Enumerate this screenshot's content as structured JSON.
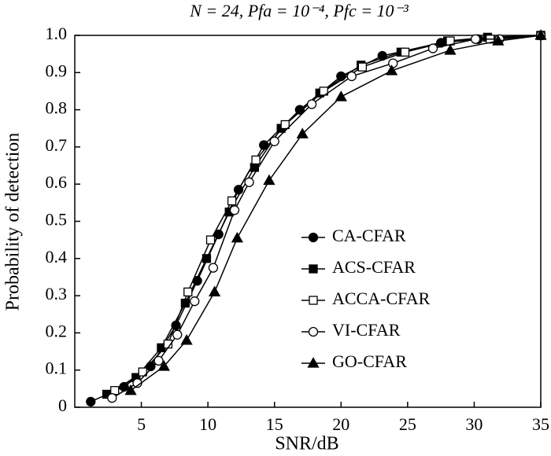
{
  "chart_data": {
    "type": "line",
    "title": "N = 24, Pfa = 10⁻⁴, Pfc = 10⁻³",
    "xlabel": "SNR/dB",
    "ylabel": "Probability of detection",
    "xlim": [
      0,
      35
    ],
    "xticks": [
      5,
      10,
      15,
      20,
      25,
      30,
      35
    ],
    "ylim": [
      0,
      1
    ],
    "yticks": [
      0,
      0.1,
      0.2,
      0.3,
      0.4,
      0.5,
      0.6,
      0.7,
      0.8,
      0.9,
      {
        "value": 1,
        "label": "1.0"
      }
    ],
    "legend": "lower right",
    "series": [
      {
        "name": "CA-CFAR",
        "color": "#000000",
        "marker": "circle-filled",
        "x": [
          1.2,
          3.7,
          5.7,
          7.6,
          9.2,
          10.8,
          12.3,
          14.2,
          16.9,
          20,
          23.1,
          27.5,
          30.3,
          35
        ],
        "values": [
          0.015,
          0.055,
          0.11,
          0.22,
          0.34,
          0.465,
          0.585,
          0.705,
          0.8,
          0.89,
          0.945,
          0.98,
          0.99,
          1
        ]
      },
      {
        "name": "ACS-CFAR",
        "color": "#000000",
        "marker": "square-filled",
        "x": [
          2.4,
          4.6,
          6.5,
          8.3,
          9.9,
          11.6,
          13.5,
          15.5,
          18.4,
          21.5,
          24.5,
          28,
          31,
          35
        ],
        "values": [
          0.035,
          0.08,
          0.16,
          0.28,
          0.4,
          0.525,
          0.645,
          0.75,
          0.845,
          0.92,
          0.955,
          0.985,
          0.995,
          1
        ]
      },
      {
        "name": "ACCA-CFAR",
        "color": "#000000",
        "marker": "square-open",
        "x": [
          3,
          5.1,
          7,
          8.5,
          10.2,
          11.8,
          13.6,
          15.8,
          18.7,
          21.6,
          24.8,
          28.2,
          31.2,
          35
        ],
        "values": [
          0.045,
          0.095,
          0.17,
          0.31,
          0.45,
          0.555,
          0.665,
          0.76,
          0.85,
          0.915,
          0.955,
          0.985,
          0.99,
          1
        ]
      },
      {
        "name": "VI-CFAR",
        "color": "#000000",
        "marker": "circle-open",
        "x": [
          2.8,
          4.7,
          6.3,
          7.7,
          9,
          10.4,
          12,
          13.1,
          15,
          17.8,
          20.8,
          23.9,
          26.9,
          30.1,
          31.9,
          35
        ],
        "values": [
          0.025,
          0.065,
          0.125,
          0.195,
          0.285,
          0.375,
          0.53,
          0.605,
          0.715,
          0.815,
          0.89,
          0.925,
          0.965,
          0.99,
          0.99,
          1
        ]
      },
      {
        "name": "GO-CFAR",
        "color": "#000000",
        "marker": "triangle-filled",
        "x": [
          4.2,
          6.7,
          8.4,
          10.5,
          12.2,
          14.6,
          17.1,
          20,
          23.8,
          28.2,
          31.8,
          35
        ],
        "values": [
          0.045,
          0.11,
          0.18,
          0.31,
          0.455,
          0.61,
          0.735,
          0.835,
          0.905,
          0.96,
          0.985,
          1
        ]
      }
    ]
  }
}
